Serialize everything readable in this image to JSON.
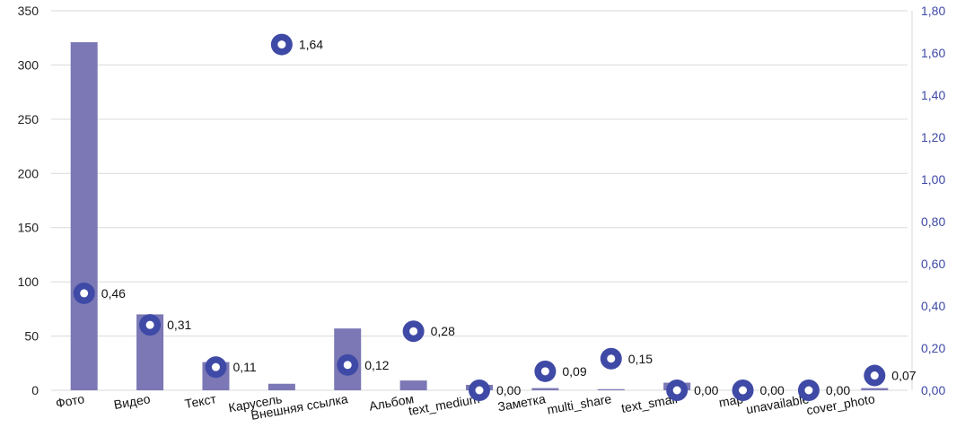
{
  "chart_data": {
    "type": "bar",
    "categories": [
      "Фото",
      "Видео",
      "Текст",
      "Карусель",
      "Внешняя  ссылка",
      "Альбом",
      "text_medium",
      "Заметка",
      "multi_share",
      "text_small",
      "map",
      "unavailable",
      "cover_photo"
    ],
    "series": [
      {
        "type": "bar",
        "axis": "left",
        "values": [
          321,
          70,
          26,
          6,
          57,
          9,
          5,
          2,
          1,
          7,
          0,
          0,
          2
        ]
      },
      {
        "type": "scatter",
        "axis": "right",
        "values": [
          0.46,
          0.31,
          0.11,
          1.64,
          0.12,
          0.28,
          0.0,
          0.09,
          0.15,
          0.0,
          0.0,
          0.0,
          0.07
        ],
        "labels": [
          "0,46",
          "0,31",
          "0,11",
          "1,64",
          "0,12",
          "0,28",
          "0,00",
          "0,09",
          "0,15",
          "0,00",
          "0,00",
          "0,00",
          "0,07"
        ]
      }
    ],
    "ylim_left": [
      0,
      350
    ],
    "yticks_left": [
      "0",
      "50",
      "100",
      "150",
      "200",
      "250",
      "300",
      "350"
    ],
    "ylim_right": [
      0,
      1.8
    ],
    "yticks_right": [
      "0,00",
      "0,20",
      "0,40",
      "0,60",
      "0,80",
      "1,00",
      "1,20",
      "1,40",
      "1,60",
      "1,80"
    ],
    "grid": true,
    "legend": "none",
    "colors": {
      "bar": "#7b78b5",
      "marker": "#3f4aa6",
      "marker_center": "#ffffff",
      "right_axis_text": "#3f4aa6",
      "grid": "#d9d9d9"
    }
  }
}
